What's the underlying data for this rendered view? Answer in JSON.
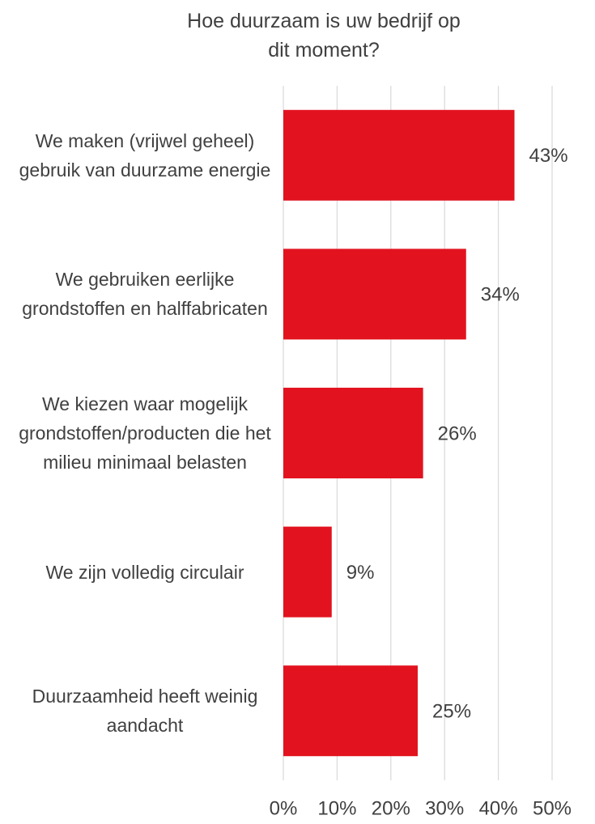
{
  "chart_data": {
    "type": "barh",
    "title": "Hoe duurzaam is uw bedrijf op dit moment?",
    "categories": [
      "We maken (vrijwel geheel) gebruik van duurzame energie",
      "We gebruiken eerlijke grondstoffen en halffabricaten",
      "We kiezen waar mogelijk grondstoffen/producten die het milieu minimaal belasten",
      "We zijn volledig circulair",
      "Duurzaamheid heeft weinig aandacht"
    ],
    "values": [
      43,
      34,
      26,
      9,
      25
    ],
    "value_labels": [
      "43%",
      "34%",
      "26%",
      "9%",
      "25%"
    ],
    "color": "#e2131f",
    "xlim": [
      0,
      50
    ],
    "xticks": [
      {
        "value": 0,
        "label": "0%"
      },
      {
        "value": 10,
        "label": "10%"
      },
      {
        "value": 20,
        "label": "20%"
      },
      {
        "value": 30,
        "label": "30%"
      },
      {
        "value": 40,
        "label": "40%"
      },
      {
        "value": 50,
        "label": "50%"
      }
    ],
    "grid": true
  }
}
